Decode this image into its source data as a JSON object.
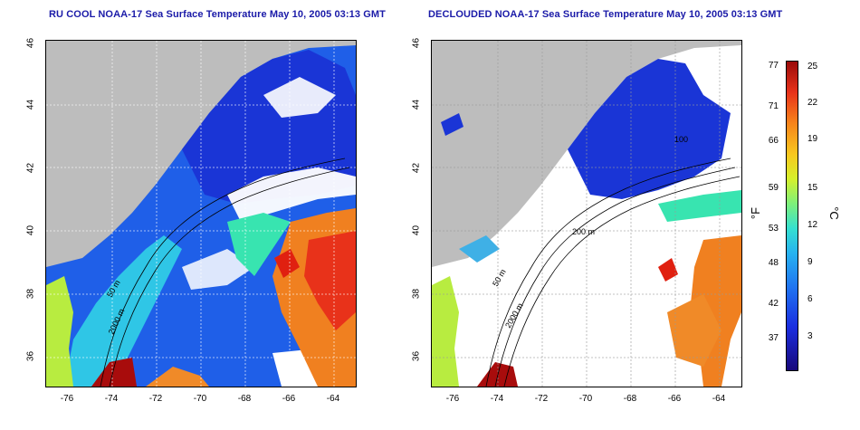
{
  "titles": {
    "left": "RU COOL NOAA-17 Sea Surface Temperature May 10, 2005 03:13 GMT",
    "right": "DECLOUDED NOAA-17 Sea Surface Temperature May 10, 2005 03:13 GMT"
  },
  "axes": {
    "lat_ticks": [
      "46",
      "44",
      "42",
      "40",
      "38",
      "36"
    ],
    "lon_ticks": [
      "-76",
      "-74",
      "-72",
      "-70",
      "-68",
      "-66",
      "-64"
    ]
  },
  "contours": {
    "left": [
      "50 m",
      "2000 m"
    ],
    "right": [
      "100",
      "200 m",
      "50 m",
      "2000 m"
    ]
  },
  "colorbar": {
    "fahrenheit_ticks": [
      "77",
      "71",
      "66",
      "59",
      "53",
      "48",
      "42",
      "37"
    ],
    "celsius_ticks": [
      "25",
      "22",
      "19",
      "15",
      "12",
      "9",
      "6",
      "3"
    ],
    "fahrenheit_unit": "°F",
    "celsius_unit": "°C"
  },
  "colors": {
    "land": "#bdbdbd",
    "cloud": "#ffffff",
    "cold": "#1a2ee0",
    "warm": "#e8321a",
    "title": "#1a1aa8"
  }
}
